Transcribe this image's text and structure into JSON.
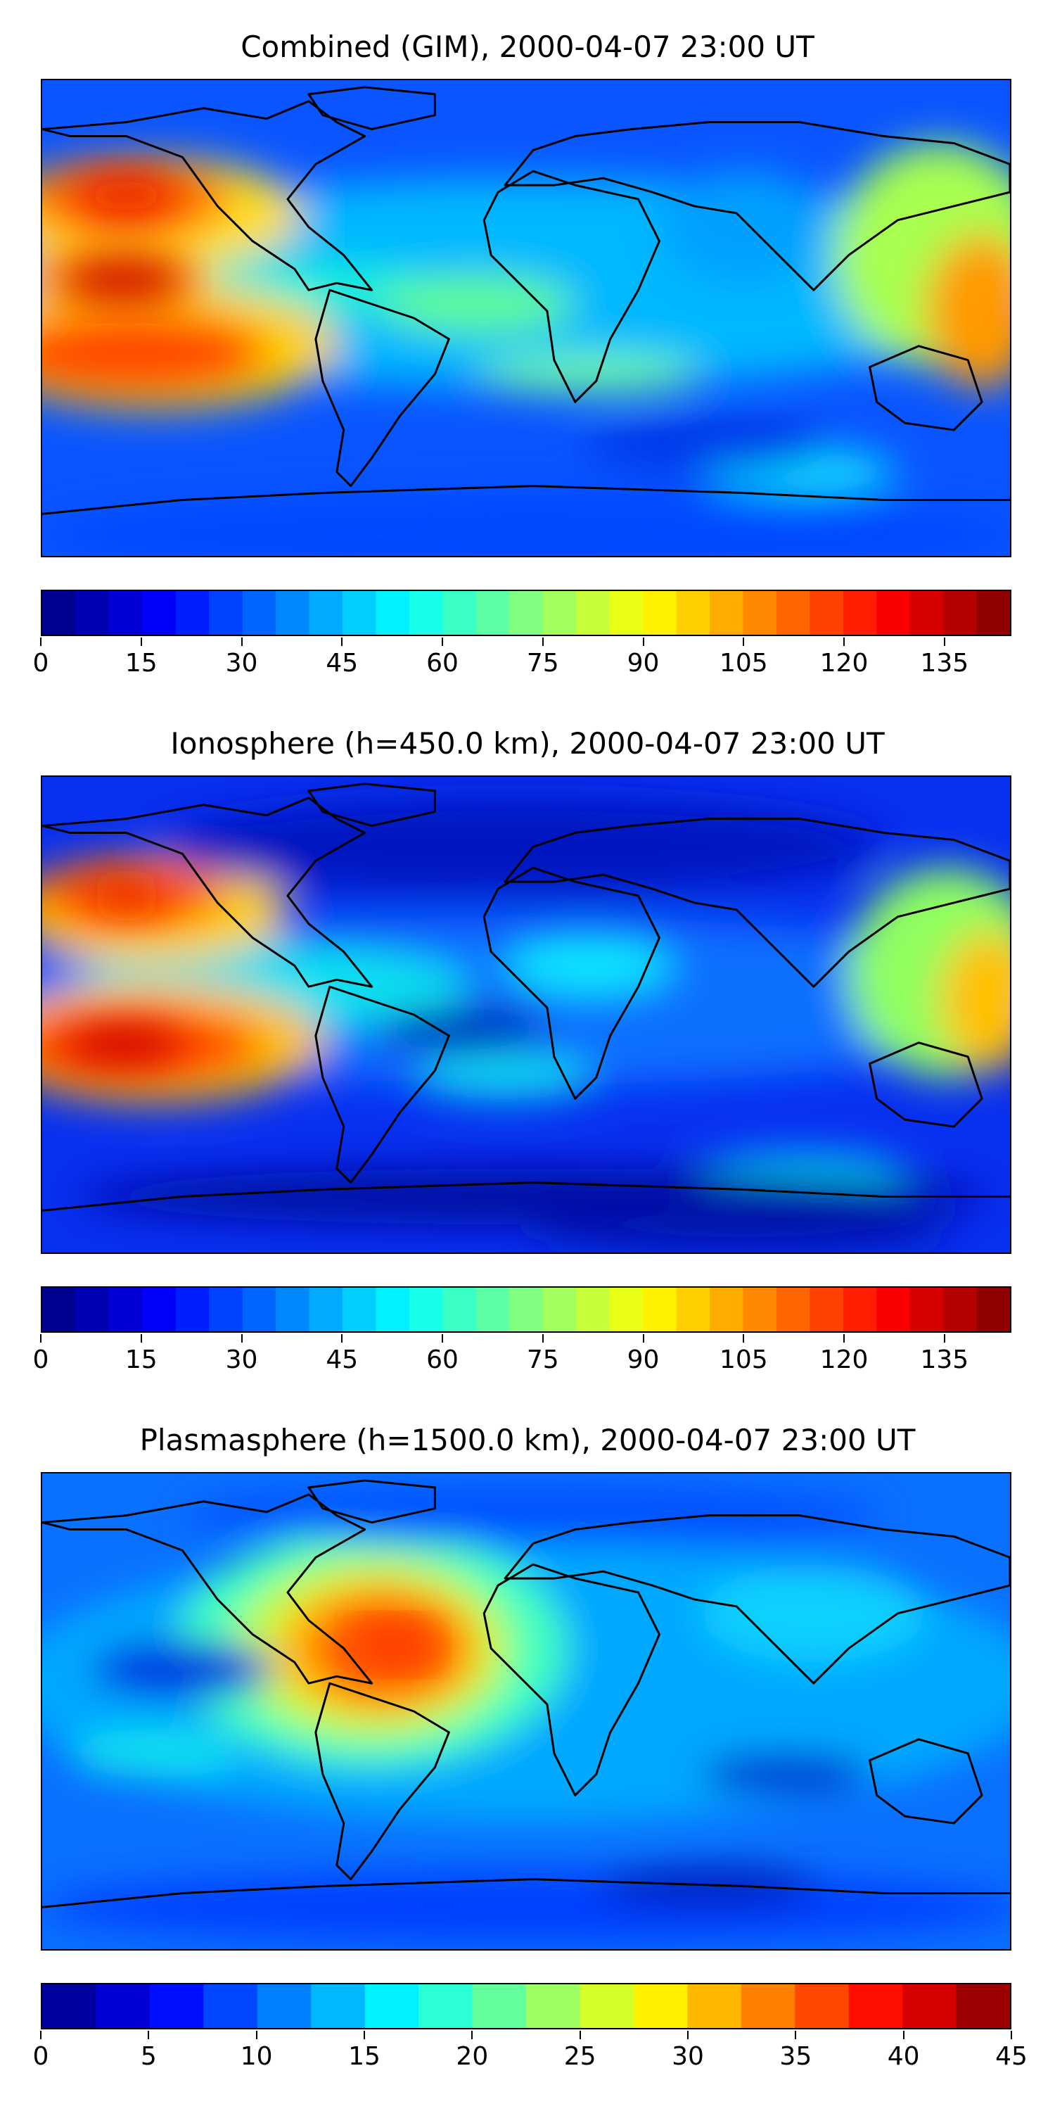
{
  "panels": [
    {
      "title": "Combined (GIM), 2000-04-07 23:00 UT",
      "colorbar": {
        "min": 0,
        "max": 145,
        "levels": 29,
        "ticks": [
          "0",
          "15",
          "30",
          "45",
          "60",
          "75",
          "90",
          "105",
          "120",
          "135"
        ],
        "tick_values": [
          0,
          15,
          30,
          45,
          60,
          75,
          90,
          105,
          120,
          135
        ]
      }
    },
    {
      "title": "Ionosphere  (h=450.0 km), 2000-04-07 23:00 UT",
      "colorbar": {
        "min": 0,
        "max": 145,
        "levels": 29,
        "ticks": [
          "0",
          "15",
          "30",
          "45",
          "60",
          "75",
          "90",
          "105",
          "120",
          "135"
        ],
        "tick_values": [
          0,
          15,
          30,
          45,
          60,
          75,
          90,
          105,
          120,
          135
        ]
      }
    },
    {
      "title": "Plasmasphere (h=1500.0 km), 2000-04-07 23:00 UT",
      "colorbar": {
        "min": 0,
        "max": 45,
        "levels": 18,
        "ticks": [
          "0",
          "5",
          "10",
          "15",
          "20",
          "25",
          "30",
          "35",
          "40",
          "45"
        ],
        "tick_values": [
          0,
          5,
          10,
          15,
          20,
          25,
          30,
          35,
          40,
          45
        ]
      }
    }
  ],
  "colormap": "jet"
}
